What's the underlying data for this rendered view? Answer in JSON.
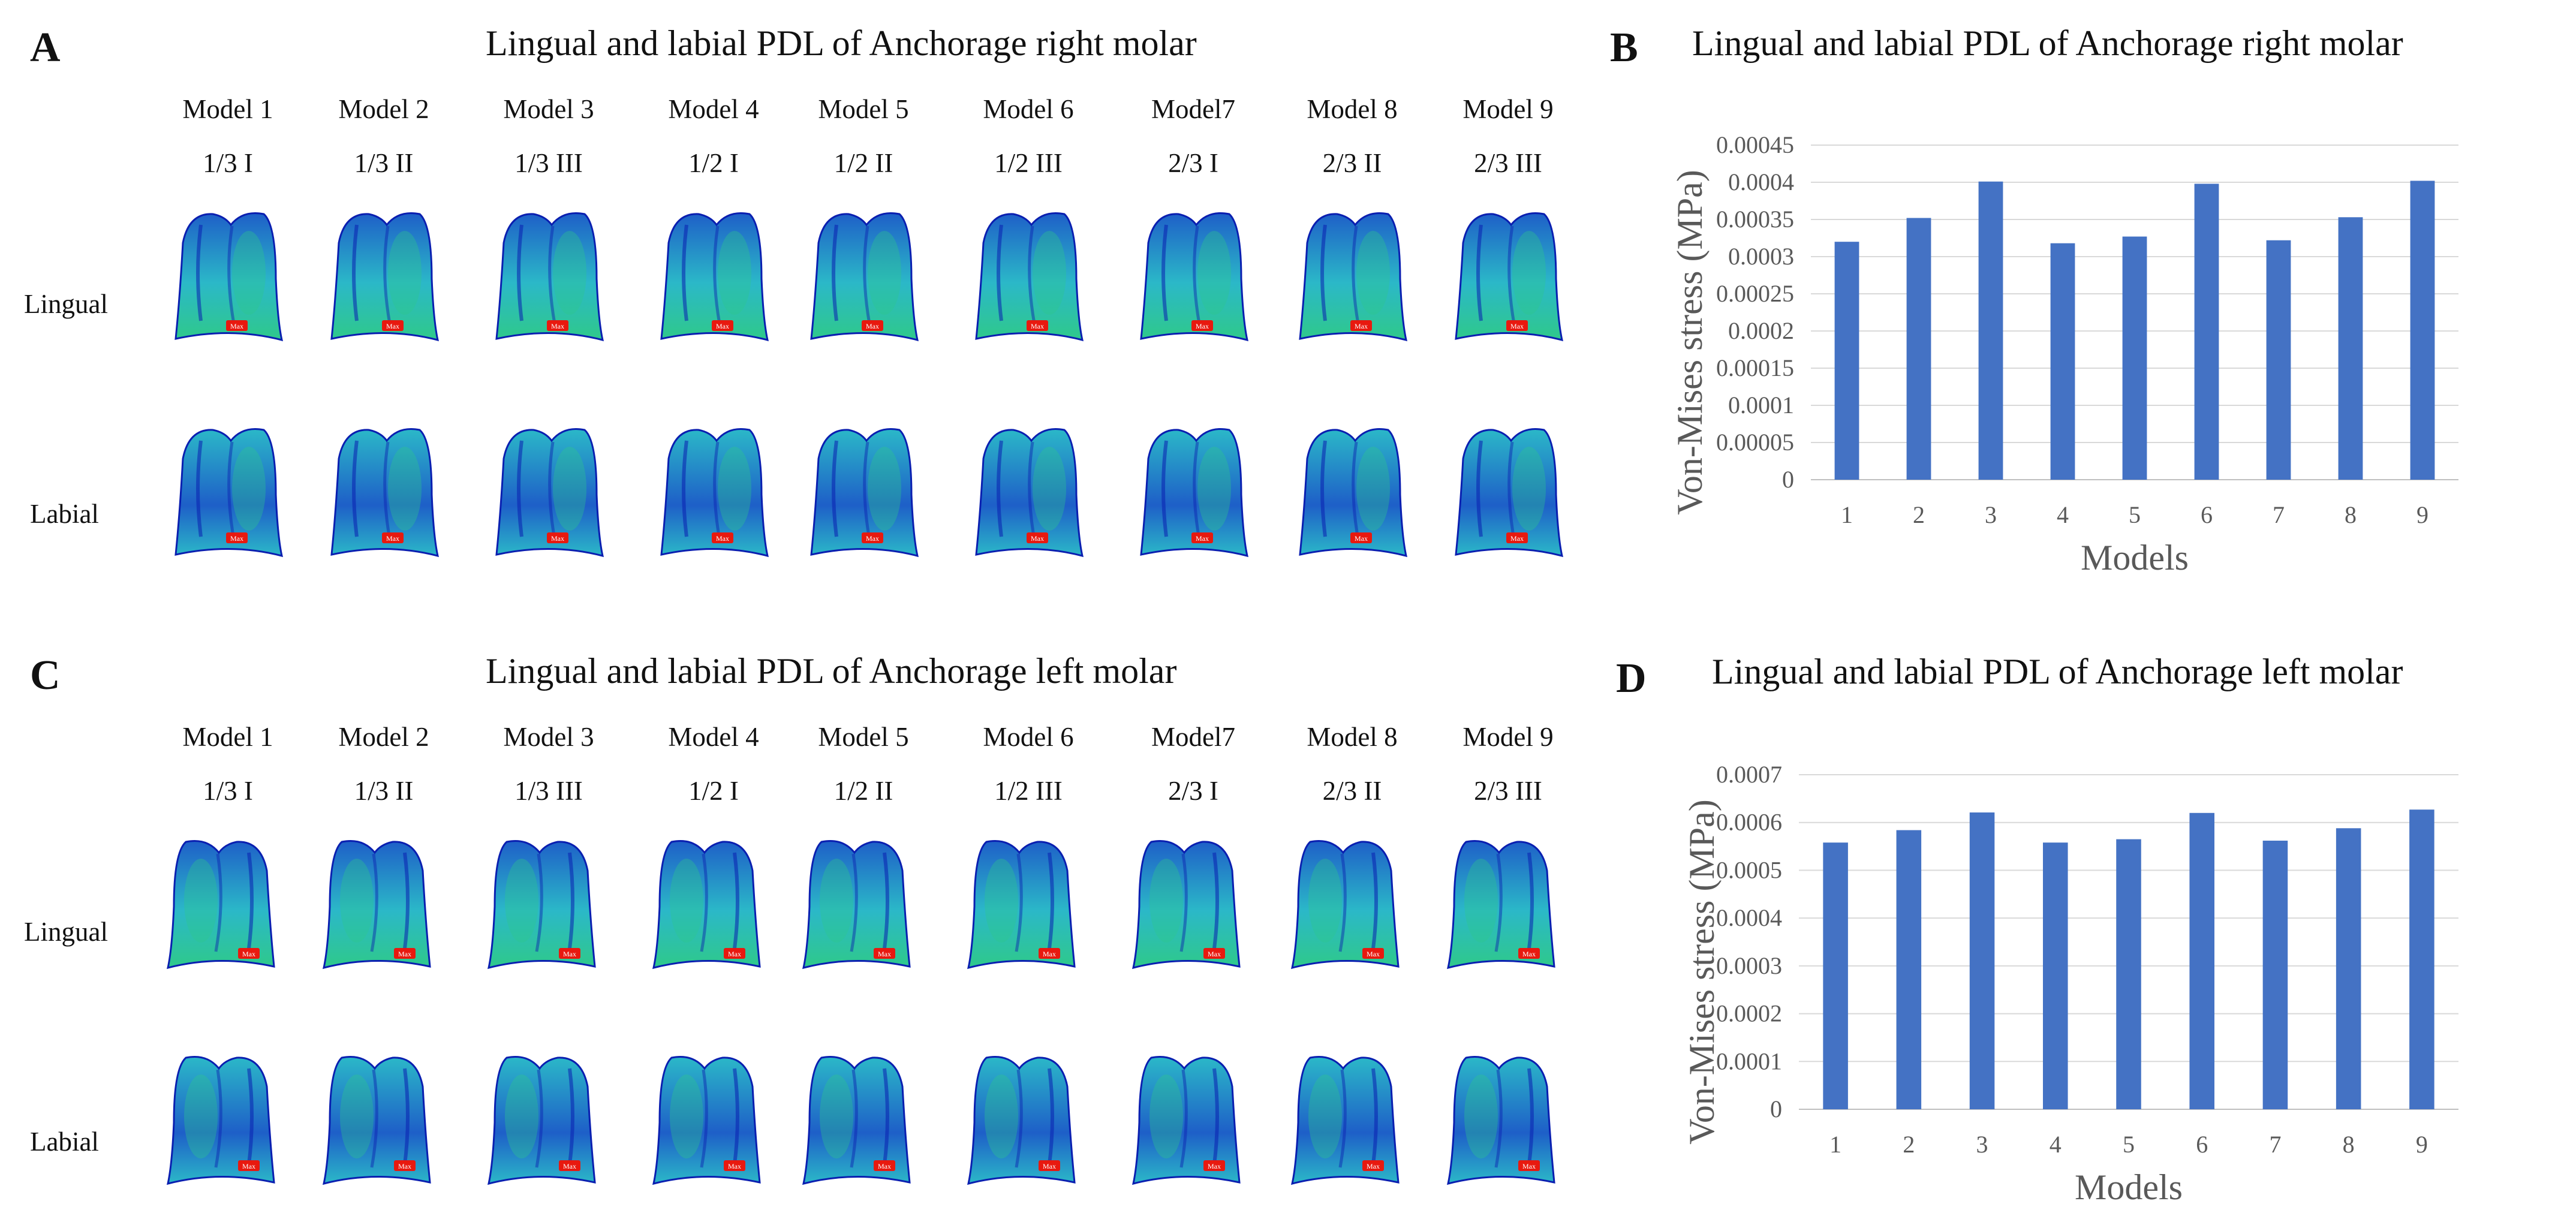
{
  "panels": {
    "A": {
      "letter": "A",
      "title": "Lingual and labial PDL of Anchorage right molar",
      "models": [
        "Model 1",
        "Model 2",
        "Model 3",
        "Model 4",
        "Model 5",
        "Model 6",
        "Model7",
        "Model 8",
        "Model 9"
      ],
      "configs": [
        "1/3 I",
        "1/3 II",
        "1/3 III",
        "1/2 I",
        "1/2 II",
        "1/2 III",
        "2/3 I",
        "2/3 II",
        "2/3 III"
      ],
      "rows": [
        "Lingual",
        "Labial"
      ]
    },
    "C": {
      "letter": "C",
      "title": "Lingual and labial PDL of Anchorage left molar",
      "models": [
        "Model 1",
        "Model 2",
        "Model 3",
        "Model 4",
        "Model 5",
        "Model 6",
        "Model7",
        "Model 8",
        "Model 9"
      ],
      "configs": [
        "1/3 I",
        "1/3 II",
        "1/3 III",
        "1/2 I",
        "1/2 II",
        "1/2 III",
        "2/3 I",
        "2/3 II",
        "2/3 III"
      ],
      "rows": [
        "Lingual",
        "Labial"
      ]
    },
    "B": {
      "letter": "B"
    },
    "D": {
      "letter": "D"
    }
  },
  "max_marker_label": "Max",
  "colors": {
    "bar": "#4472C4",
    "grid": "#D9D9D9",
    "tick_text": "#595959",
    "mesh_green": "#2FC98A",
    "mesh_cyan": "#2BB8C8",
    "mesh_blue": "#1E5FC8",
    "mesh_dark": "#0A1FB0",
    "max_marker": "#E8190F"
  },
  "chart_data": [
    {
      "type": "bar",
      "title": "Lingual and labial PDL of Anchorage right molar",
      "xlabel": "Models",
      "ylabel": "Von-Mises stress (MPa)",
      "categories": [
        "1",
        "2",
        "3",
        "4",
        "5",
        "6",
        "7",
        "8",
        "9"
      ],
      "values": [
        0.00032,
        0.000352,
        0.000401,
        0.000318,
        0.000327,
        0.000398,
        0.000322,
        0.000353,
        0.000402
      ],
      "ylim": [
        0,
        0.00045
      ],
      "yticks": [
        "0",
        "0.00005",
        "0.0001",
        "0.00015",
        "0.0002",
        "0.00025",
        "0.0003",
        "0.00035",
        "0.0004",
        "0.00045"
      ],
      "grid": true
    },
    {
      "type": "bar",
      "title": "Lingual and labial PDL of Anchorage left molar",
      "xlabel": "Models",
      "ylabel": "Von-Mises stress (MPa)",
      "categories": [
        "1",
        "2",
        "3",
        "4",
        "5",
        "6",
        "7",
        "8",
        "9"
      ],
      "values": [
        0.000558,
        0.000584,
        0.000621,
        0.000558,
        0.000565,
        0.00062,
        0.000562,
        0.000588,
        0.000627
      ],
      "ylim": [
        0,
        0.0007
      ],
      "yticks": [
        "0",
        "0.0001",
        "0.0002",
        "0.0003",
        "0.0004",
        "0.0005",
        "0.0006",
        "0.0007"
      ],
      "grid": true
    }
  ]
}
